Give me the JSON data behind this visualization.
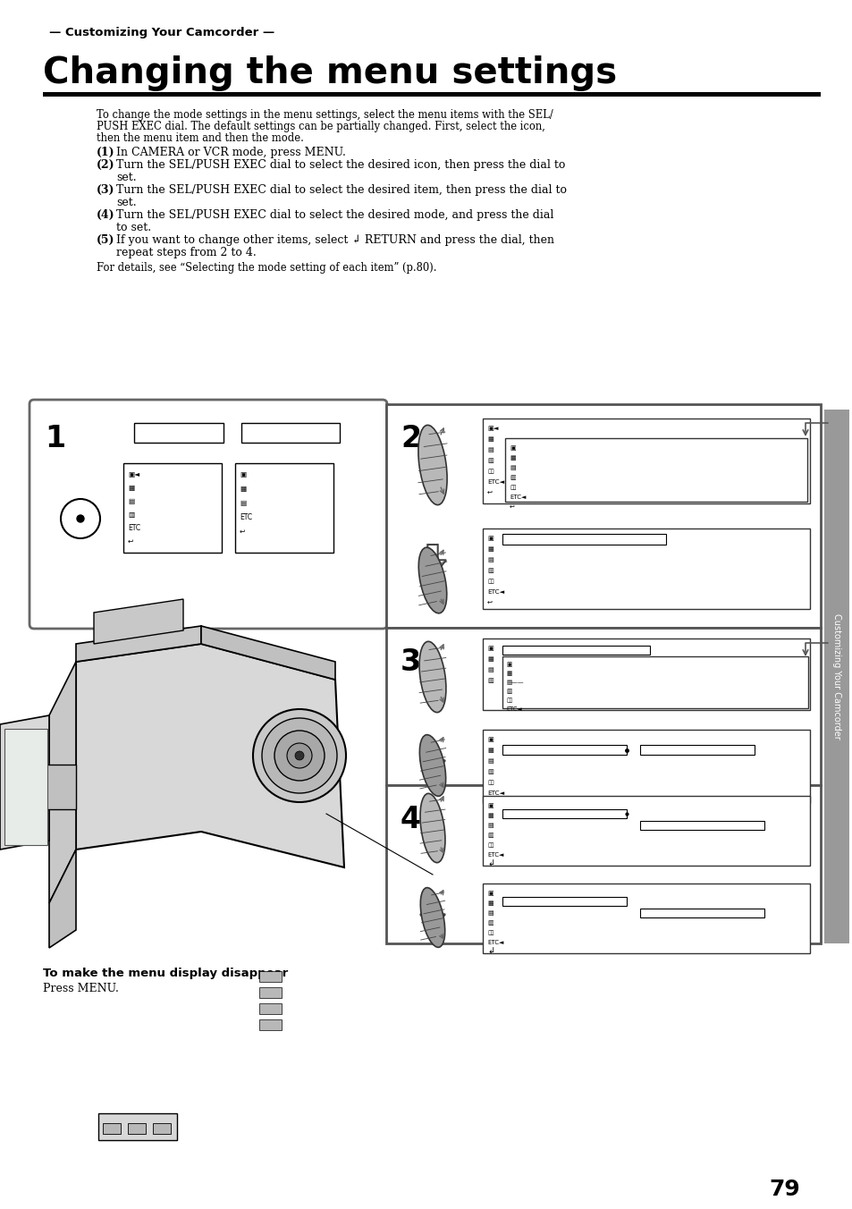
{
  "title_small": "— Customizing Your Camcorder —",
  "title_large": "Changing the menu settings",
  "body_lines": [
    "To change the mode settings in the menu settings, select the menu items with the SEL/",
    "PUSH EXEC dial. The default settings can be partially changed. First, select the icon,",
    "then the menu item and then the mode."
  ],
  "step1": "(1) In CAMERA or VCR mode, press MENU.",
  "step2a": "(2) Turn the SEL/PUSH EXEC dial to select the desired icon, then press the dial to",
  "step2b": "  set.",
  "step3a": "(3) Turn the SEL/PUSH EXEC dial to select the desired item, then press the dial to",
  "step3b": "  set.",
  "step4a": "(4) Turn the SEL/PUSH EXEC dial to select the desired mode, and press the dial",
  "step4b": "  to set.",
  "step5a": "(5) If you want to change other items, select ↲ RETURN and press the dial, then",
  "step5b": "  repeat steps from 2 to 4.",
  "details": "For details, see “Selecting the mode setting of each item” (p.80).",
  "footer_bold": "To make the menu display disappear",
  "footer_text": "Press MENU.",
  "page_num": "79",
  "sidebar_text": "Customizing Your Camcorder",
  "bg_color": "#ffffff",
  "sidebar_color": "#999999",
  "panel_border_color": "#555555",
  "box1_border_color": "#666666"
}
